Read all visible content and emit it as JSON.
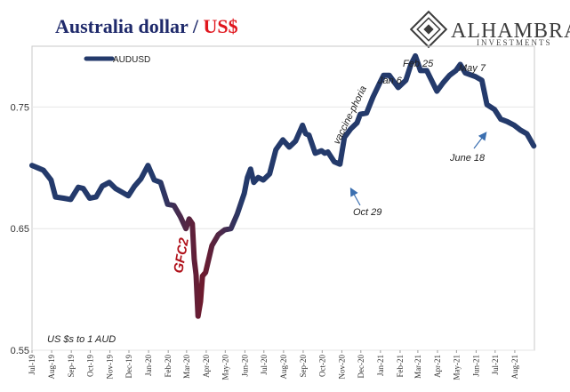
{
  "header": {
    "title_main": "Australia dollar / ",
    "title_accent": "US$"
  },
  "brand": {
    "name": "ALHAMBRA",
    "tagline": "INVESTMENTS"
  },
  "colors": {
    "line_start": "#243a6b",
    "line_crisis": "#6e1a2d",
    "title_blue": "#1f2a6b",
    "title_red": "#e0161d",
    "annotation_red": "#b0111a",
    "arrow_blue": "#3b6fb0"
  },
  "chart_data": {
    "type": "line",
    "title": "Australia dollar / US$",
    "xlabel": "",
    "ylabel": "",
    "ylim": [
      0.55,
      0.8
    ],
    "yticks": [
      0.55,
      0.65,
      0.75
    ],
    "ytick_labels": [
      "0.55",
      "0.65",
      "0.75"
    ],
    "grid": true,
    "legend_position": "top-left",
    "note": "US $s to 1 AUD",
    "xtick_labels": [
      "Jul-19",
      "Aug-19",
      "Sep-19",
      "Oct-19",
      "Nov-19",
      "Dec-19",
      "Jan-20",
      "Feb-20",
      "Mar-20",
      "Apr-20",
      "May-20",
      "Jun-20",
      "Jul-20",
      "Aug-20",
      "Sep-20",
      "Oct-20",
      "Nov-20",
      "Dec-20",
      "Jan-21",
      "Feb-21",
      "Mar-21",
      "Apr-21",
      "May-21",
      "Jun-21",
      "Jul-21",
      "Aug-21"
    ],
    "series": [
      {
        "name": "AUDUSD",
        "x": [
          "2019-07-01",
          "2019-07-10",
          "2019-07-19",
          "2019-07-31",
          "2019-08-07",
          "2019-08-20",
          "2019-08-31",
          "2019-09-12",
          "2019-09-20",
          "2019-09-30",
          "2019-10-10",
          "2019-10-20",
          "2019-10-31",
          "2019-11-10",
          "2019-11-20",
          "2019-11-30",
          "2019-12-10",
          "2019-12-20",
          "2019-12-31",
          "2020-01-10",
          "2020-01-20",
          "2020-01-31",
          "2020-02-10",
          "2020-02-20",
          "2020-02-29",
          "2020-03-05",
          "2020-03-10",
          "2020-03-13",
          "2020-03-16",
          "2020-03-19",
          "2020-03-23",
          "2020-03-26",
          "2020-03-31",
          "2020-04-10",
          "2020-04-20",
          "2020-04-30",
          "2020-05-10",
          "2020-05-20",
          "2020-05-31",
          "2020-06-05",
          "2020-06-10",
          "2020-06-15",
          "2020-06-22",
          "2020-06-30",
          "2020-07-10",
          "2020-07-20",
          "2020-07-31",
          "2020-08-10",
          "2020-08-20",
          "2020-08-31",
          "2020-09-05",
          "2020-09-10",
          "2020-09-20",
          "2020-09-30",
          "2020-10-05",
          "2020-10-10",
          "2020-10-20",
          "2020-10-29",
          "2020-11-05",
          "2020-11-15",
          "2020-11-25",
          "2020-11-30",
          "2020-12-10",
          "2020-12-20",
          "2020-12-31",
          "2021-01-06",
          "2021-01-15",
          "2021-01-29",
          "2021-02-10",
          "2021-02-18",
          "2021-02-25",
          "2021-03-05",
          "2021-03-15",
          "2021-03-31",
          "2021-04-10",
          "2021-04-20",
          "2021-04-30",
          "2021-05-07",
          "2021-05-15",
          "2021-05-31",
          "2021-06-10",
          "2021-06-18",
          "2021-06-30",
          "2021-07-10",
          "2021-07-20",
          "2021-07-31",
          "2021-08-10",
          "2021-08-20",
          "2021-08-31"
        ],
        "values": [
          0.702,
          0.7,
          0.698,
          0.69,
          0.676,
          0.675,
          0.674,
          0.684,
          0.683,
          0.675,
          0.676,
          0.685,
          0.688,
          0.683,
          0.68,
          0.677,
          0.685,
          0.691,
          0.702,
          0.69,
          0.688,
          0.67,
          0.669,
          0.66,
          0.65,
          0.658,
          0.654,
          0.625,
          0.612,
          0.578,
          0.59,
          0.611,
          0.614,
          0.636,
          0.645,
          0.649,
          0.65,
          0.662,
          0.679,
          0.692,
          0.699,
          0.688,
          0.692,
          0.69,
          0.695,
          0.715,
          0.723,
          0.717,
          0.722,
          0.735,
          0.728,
          0.727,
          0.712,
          0.714,
          0.712,
          0.713,
          0.705,
          0.703,
          0.725,
          0.732,
          0.737,
          0.744,
          0.745,
          0.758,
          0.77,
          0.776,
          0.776,
          0.766,
          0.772,
          0.785,
          0.792,
          0.78,
          0.78,
          0.763,
          0.77,
          0.776,
          0.78,
          0.785,
          0.778,
          0.775,
          0.772,
          0.752,
          0.748,
          0.74,
          0.738,
          0.735,
          0.731,
          0.728,
          0.718
        ]
      }
    ],
    "annotations": [
      {
        "text": "GFC2",
        "date": "2020-03-19",
        "value": 0.578
      },
      {
        "text": "Oct 29",
        "date": "2020-10-29",
        "value": 0.703
      },
      {
        "text": "vaccine-phoria",
        "date": "2020-11-25",
        "value": 0.737
      },
      {
        "text": "Jan 6",
        "date": "2021-01-06",
        "value": 0.776
      },
      {
        "text": "Feb 25",
        "date": "2021-02-25",
        "value": 0.792
      },
      {
        "text": "May 7",
        "date": "2021-05-07",
        "value": 0.785
      },
      {
        "text": "June 18",
        "date": "2021-06-18",
        "value": 0.752
      }
    ]
  }
}
